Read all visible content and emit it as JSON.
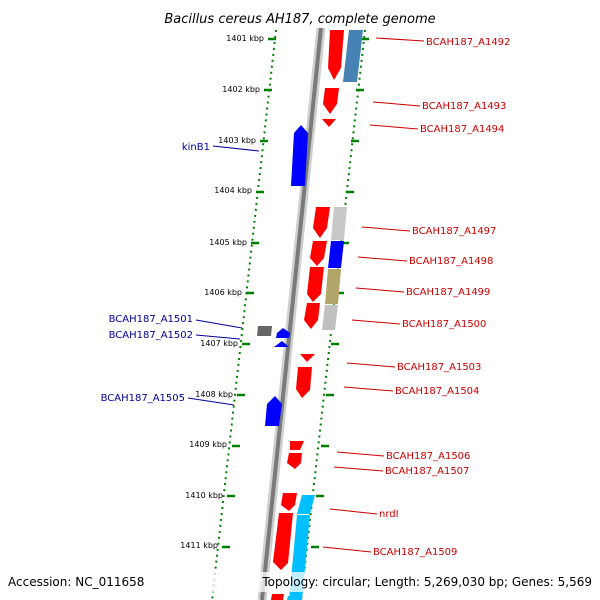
{
  "title": "Bacillus cereus AH187, complete genome",
  "accession": "Accession: NC_011658",
  "topology": "Topology: circular; Length: 5,269,030 bp; Genes: 5,569",
  "colors": {
    "fwd_gene": "#ff0000",
    "rev_gene": "#0000ff",
    "right_label": "#cc0000",
    "left_label": "#000099",
    "tick": "#008000",
    "backbone": "#808080",
    "cog_blue": "#4682b4",
    "cog_cyan": "#00bfff",
    "cog_grey": "#bbbbbb",
    "cog_khaki": "#b3a46a"
  },
  "kbp_ticks": [
    "1401 kbp",
    "1402 kbp",
    "1403 kbp",
    "1404 kbp",
    "1405 kbp",
    "1406 kbp",
    "1407 kbp",
    "1408 kbp",
    "1409 kbp",
    "1410 kbp",
    "1411 kbp"
  ],
  "right_labels": [
    "BCAH187_A1492",
    "BCAH187_A1493",
    "BCAH187_A1494",
    "BCAH187_A1497",
    "BCAH187_A1498",
    "BCAH187_A1499",
    "BCAH187_A1500",
    "BCAH187_A1503",
    "BCAH187_A1504",
    "BCAH187_A1506",
    "BCAH187_A1507",
    "nrdI",
    "BCAH187_A1509"
  ],
  "left_labels": [
    "kinB1",
    "BCAH187_A1501",
    "BCAH187_A1502",
    "BCAH187_A1505"
  ]
}
